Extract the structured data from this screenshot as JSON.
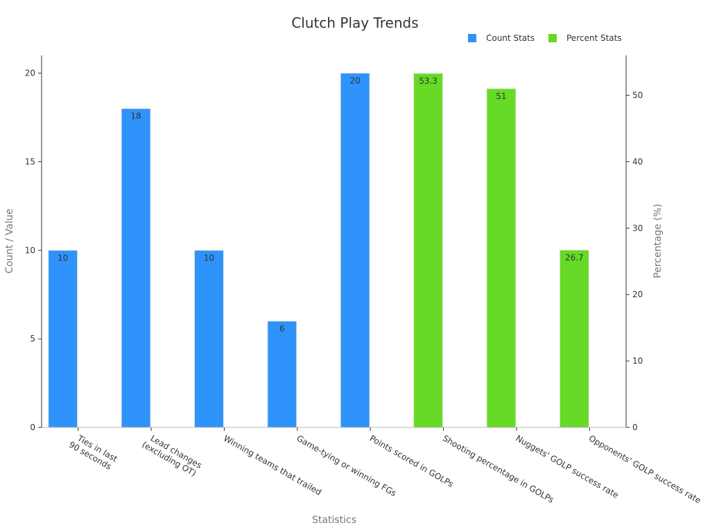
{
  "chart_data": {
    "type": "bar",
    "title": "Clutch Play Trends",
    "xlabel": "Statistics",
    "ylabel": "Count / Value",
    "y2label": "Percentage (%)",
    "ylim": [
      0,
      21
    ],
    "y2lim": [
      0,
      56
    ],
    "yticks": [
      0,
      5,
      10,
      15,
      20
    ],
    "y2ticks": [
      0,
      10,
      20,
      30,
      40,
      50
    ],
    "grid": false,
    "legend_position": "top-right",
    "categories": [
      [
        "Ties in last",
        "90 seconds"
      ],
      [
        "Lead changes",
        "(excluding OT)"
      ],
      [
        "Winning teams that trailed"
      ],
      [
        "Game-tying or winning FGs"
      ],
      [
        "Points scored in GOLPs"
      ],
      [
        "Shooting percentage in GOLPs"
      ],
      [
        "Nuggets' GOLP success rate"
      ],
      [
        "Opponents' GOLP success rate"
      ]
    ],
    "series": [
      {
        "name": "Count Stats",
        "color": "#2e93fa",
        "axis": "left",
        "values": [
          10,
          18,
          10,
          6,
          20,
          null,
          null,
          null
        ],
        "labels": [
          "10",
          "18",
          "10",
          "6",
          "20",
          "",
          "",
          ""
        ]
      },
      {
        "name": "Percent Stats",
        "color": "#66da26",
        "axis": "right",
        "values": [
          null,
          null,
          null,
          null,
          null,
          53.3,
          51,
          26.7
        ],
        "labels": [
          "",
          "",
          "",
          "",
          "",
          "53.3",
          "51",
          "26.7"
        ]
      }
    ]
  }
}
